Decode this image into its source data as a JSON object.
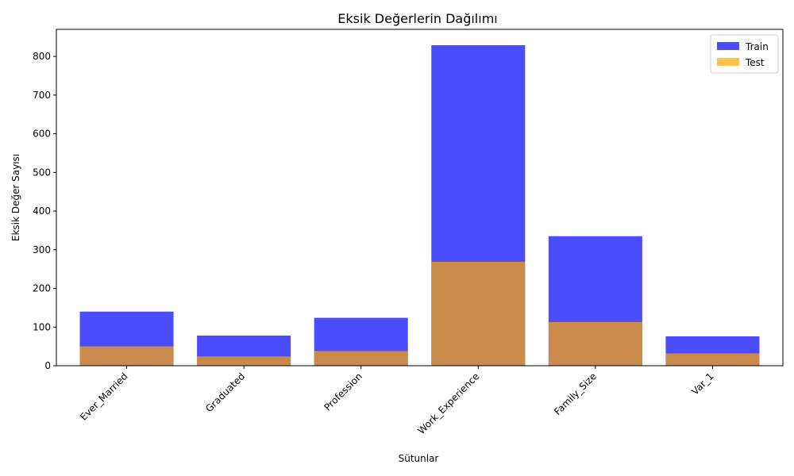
{
  "chart_data": {
    "type": "bar",
    "title": "Eksik Değerlerin Dağılımı",
    "xlabel": "Sütunlar",
    "ylabel": "Eksik Değer Sayısı",
    "categories": [
      "Ever_Married",
      "Graduated",
      "Profession",
      "Work_Experience",
      "Family_Size",
      "Var_1"
    ],
    "series": [
      {
        "name": "Train",
        "color": "#0000ff",
        "opacity": 0.7,
        "values": [
          140,
          78,
          124,
          829,
          335,
          76
        ]
      },
      {
        "name": "Test",
        "color": "#ffa500",
        "opacity": 0.7,
        "values": [
          50,
          24,
          38,
          269,
          113,
          32
        ]
      }
    ],
    "ylim": [
      0,
      870
    ],
    "yticks": [
      0,
      100,
      200,
      300,
      400,
      500,
      600,
      700,
      800
    ],
    "legend_position": "top-right",
    "grid": false,
    "bar_overlap": true
  }
}
